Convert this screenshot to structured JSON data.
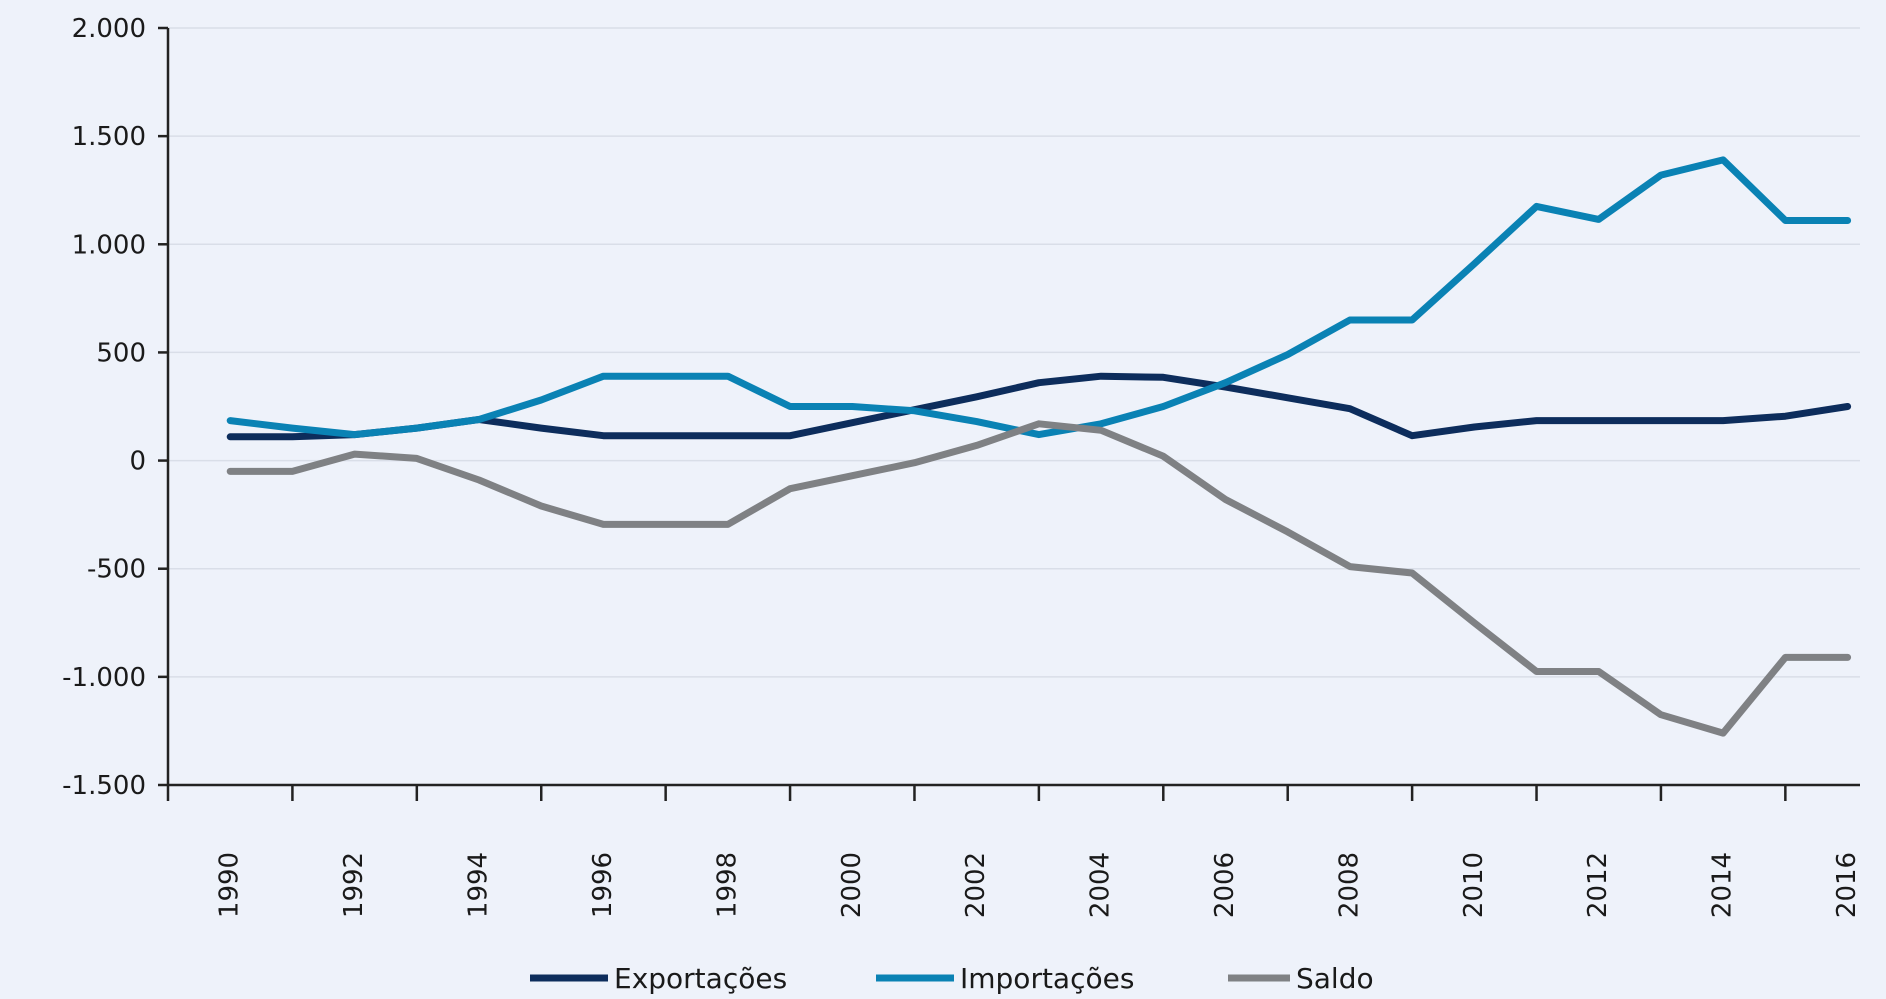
{
  "chart_data": {
    "type": "line",
    "title": "",
    "xlabel": "",
    "ylabel": "",
    "ylim": [
      -1500,
      2000
    ],
    "y_ticks": [
      2000,
      1500,
      1000,
      500,
      0,
      -500,
      -1000,
      -1500
    ],
    "y_tick_labels": [
      "2.000",
      "1.500",
      "1.000",
      "500",
      "0",
      "-500",
      "-1.000",
      "-1.500"
    ],
    "x_tick_labels": [
      "1990",
      "1992",
      "1994",
      "1996",
      "1998",
      "2000",
      "2002",
      "2004",
      "2006",
      "2008",
      "2010",
      "2012",
      "2014",
      "2016"
    ],
    "x": [
      1990,
      1991,
      1992,
      1993,
      1994,
      1995,
      1996,
      1997,
      1998,
      1999,
      2000,
      2001,
      2002,
      2003,
      2004,
      2005,
      2006,
      2007,
      2008,
      2009,
      2010,
      2011,
      2012,
      2013,
      2014,
      2015,
      2016
    ],
    "grid": true,
    "legend_position": "bottom",
    "series": [
      {
        "name": "Exportações",
        "color": "#0d2d5c",
        "values": [
          110,
          110,
          120,
          150,
          190,
          150,
          115,
          115,
          115,
          115,
          175,
          235,
          295,
          360,
          390,
          385,
          340,
          290,
          240,
          115,
          155,
          185,
          185,
          185,
          185,
          205,
          250
        ]
      },
      {
        "name": "Importações",
        "color": "#0a82b4",
        "values": [
          185,
          150,
          120,
          150,
          190,
          280,
          390,
          390,
          390,
          250,
          250,
          230,
          180,
          120,
          170,
          250,
          360,
          490,
          650,
          650,
          910,
          1175,
          1115,
          1320,
          1390,
          1110,
          1110
        ]
      },
      {
        "name": "Saldo",
        "color": "#7f8184",
        "values": [
          -50,
          -50,
          30,
          10,
          -90,
          -210,
          -295,
          -295,
          -295,
          -130,
          -70,
          -10,
          70,
          170,
          140,
          20,
          -180,
          -330,
          -490,
          -520,
          -750,
          -975,
          -975,
          -1175,
          -1260,
          -910,
          -910
        ]
      }
    ]
  }
}
